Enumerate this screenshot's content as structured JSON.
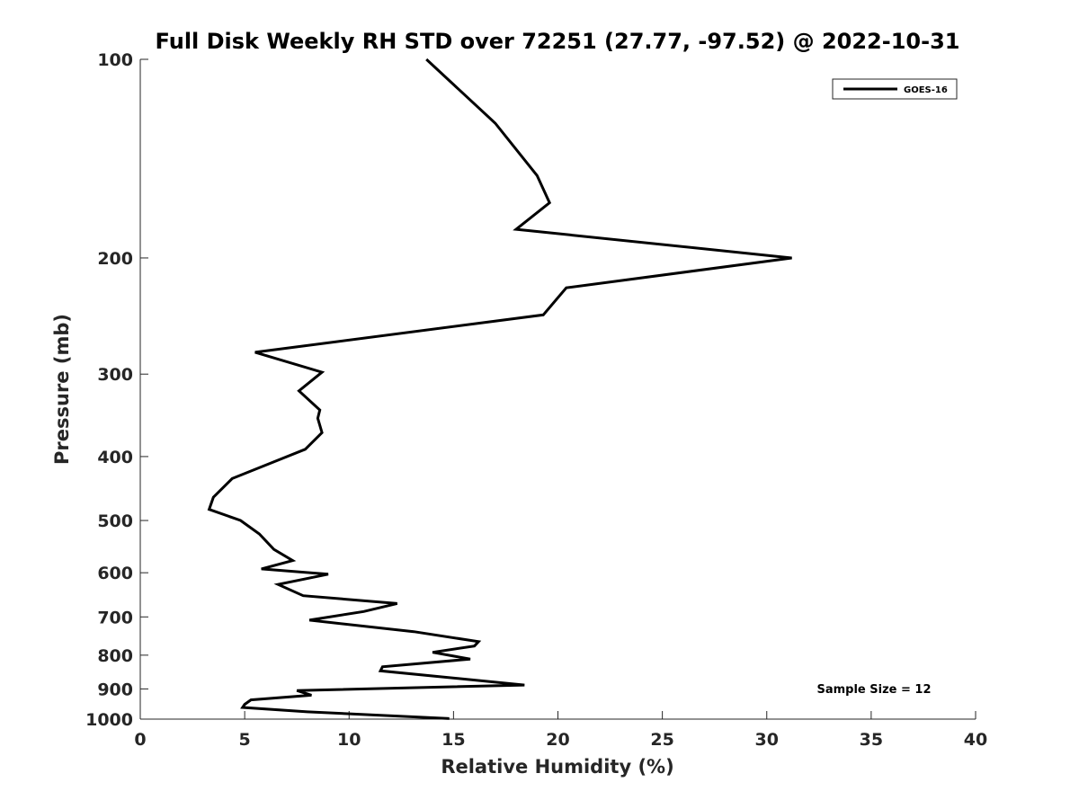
{
  "chart_data": {
    "type": "line",
    "title": "Full Disk Weekly RH STD over 72251 (27.77, -97.52) @ 2022-10-31",
    "xlabel": "Relative Humidity (%)",
    "ylabel": "Pressure (mb)",
    "xlim": [
      0,
      40
    ],
    "ylim": [
      100,
      1000
    ],
    "yscale": "log",
    "y_reversed": true,
    "grid": false,
    "x_ticks": [
      "0",
      "5",
      "10",
      "15",
      "20",
      "25",
      "30",
      "35",
      "40"
    ],
    "y_ticks": [
      "100",
      "200",
      "300",
      "400",
      "500",
      "600",
      "700",
      "800",
      "900",
      "1000"
    ],
    "legend": {
      "position": "top-right",
      "entries": [
        "GOES-16"
      ]
    },
    "annotation": "Sample Size = 12",
    "series": [
      {
        "name": "GOES-16",
        "color": "#000000",
        "x": [
          13.7,
          17.0,
          19.0,
          19.6,
          18.0,
          31.2,
          20.4,
          19.3,
          5.5,
          8.7,
          7.6,
          8.6,
          8.5,
          8.7,
          7.9,
          4.4,
          3.5,
          3.3,
          4.8,
          5.7,
          6.4,
          7.3,
          5.8,
          9.0,
          6.6,
          7.8,
          12.3,
          10.7,
          8.1,
          13.1,
          16.2,
          16.0,
          14.0,
          15.8,
          11.6,
          11.5,
          18.4,
          7.5,
          8.2,
          5.3,
          5.0,
          4.9,
          8.0,
          14.8
        ],
        "y": [
          100,
          125,
          150,
          165,
          181,
          200,
          222,
          244,
          278,
          298,
          318,
          340,
          350,
          368,
          390,
          432,
          461,
          481,
          500,
          524,
          553,
          575,
          592,
          603,
          625,
          650,
          668,
          687,
          708,
          737,
          763,
          775,
          792,
          811,
          833,
          845,
          888,
          905,
          920,
          935,
          950,
          960,
          975,
          998
        ]
      }
    ]
  }
}
